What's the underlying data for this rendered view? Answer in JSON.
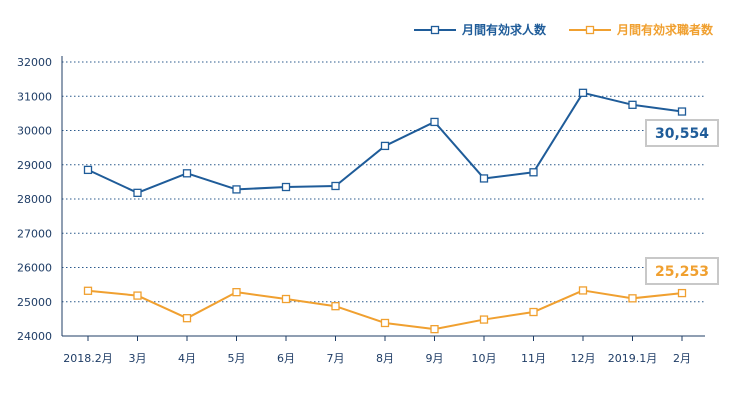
{
  "chart_data": {
    "type": "line",
    "categories": [
      "2018.2月",
      "3月",
      "4月",
      "5月",
      "6月",
      "7月",
      "8月",
      "9月",
      "10月",
      "11月",
      "12月",
      "2019.1月",
      "2月"
    ],
    "series": [
      {
        "name": "月間有効求人数",
        "color": "#1f5c99",
        "values": [
          28850,
          28180,
          28750,
          28280,
          28350,
          28380,
          29550,
          30250,
          28600,
          28780,
          31100,
          30750,
          30554
        ],
        "end_label": "30,554"
      },
      {
        "name": "月間有効求職者数",
        "color": "#f0a030",
        "values": [
          25320,
          25180,
          24520,
          25280,
          25080,
          24870,
          24380,
          24200,
          24480,
          24700,
          25330,
          25100,
          25253
        ],
        "end_label": "25,253"
      }
    ],
    "y_ticks": [
      "24000",
      "25000",
      "26000",
      "27000",
      "28000",
      "29000",
      "30000",
      "31000",
      "32000"
    ],
    "ylim": [
      24000,
      32000
    ],
    "grid": true,
    "grid_style": "dotted",
    "legend_position": "top-right",
    "title": "",
    "xlabel": "",
    "ylabel": "",
    "axis_color": "#1f3d66",
    "grid_color": "#2b5a8c",
    "callout_border_color": "#c8c8c8"
  }
}
